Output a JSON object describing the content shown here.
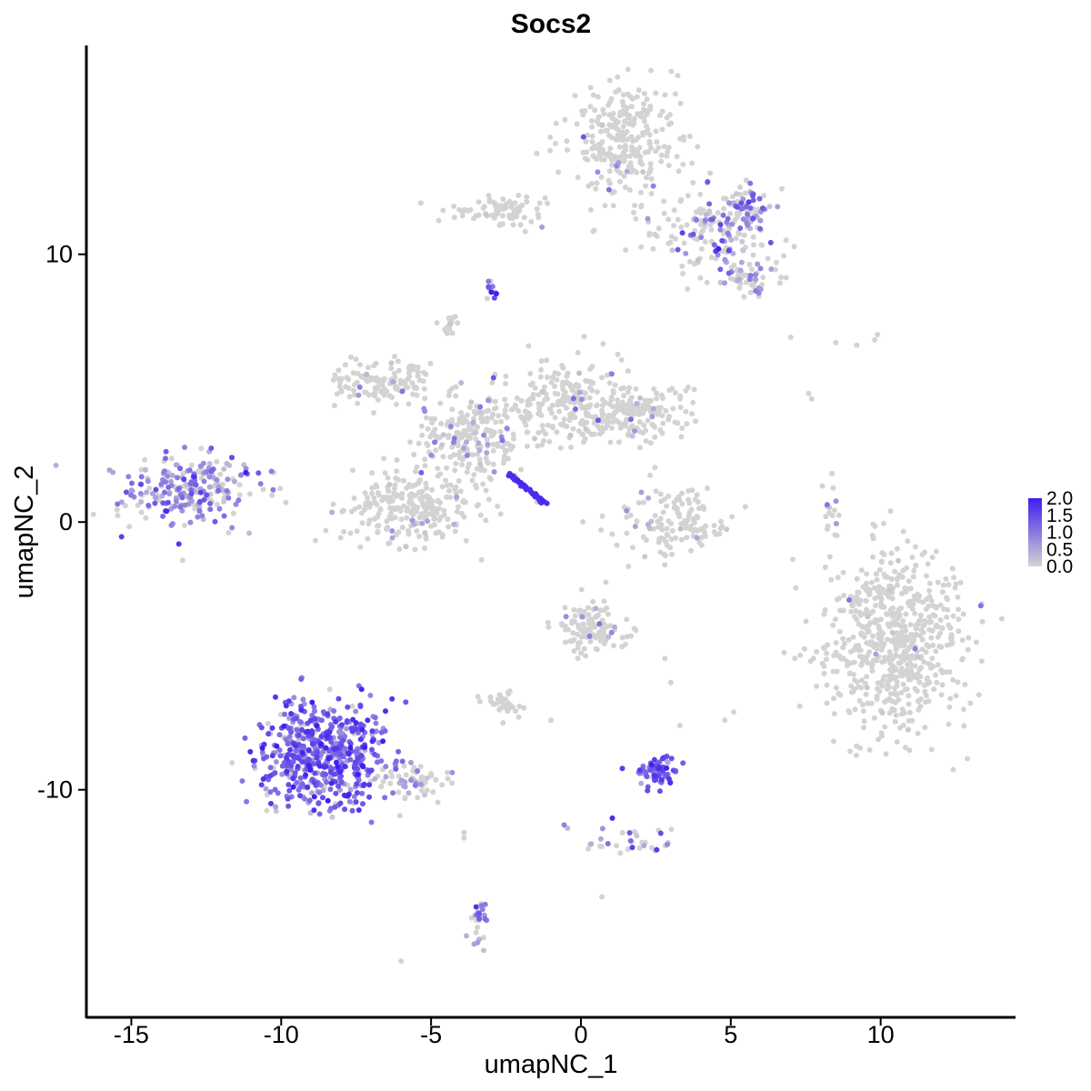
{
  "chart_data": {
    "type": "scatter",
    "title": "Socs2",
    "xlabel": "umapNC_1",
    "ylabel": "umapNC_2",
    "xlim": [
      -16.5,
      14.5
    ],
    "ylim": [
      -18.5,
      17.8
    ],
    "x_ticks": [
      -15,
      -10,
      -5,
      0,
      5,
      10
    ],
    "x_tick_labels": [
      "-15",
      "-10",
      "-5",
      "0",
      "5",
      "10"
    ],
    "y_ticks": [
      -10,
      0,
      10
    ],
    "y_tick_labels": [
      "-10",
      "0",
      "10"
    ],
    "grid": false,
    "legend": {
      "position": "right",
      "title": "",
      "min": 0.0,
      "max": 2.0,
      "ticks": [
        2.0,
        1.5,
        1.0,
        0.5,
        0.0
      ],
      "tick_labels": [
        "2.0",
        "1.5",
        "1.0",
        "0.5",
        "0.0"
      ],
      "low_color": "#d3d3d3",
      "high_color": "#3f1ef0"
    },
    "point_color_low": "#d3d3d3",
    "point_color_high": "#3f1ef0",
    "clusters": [
      {
        "id": "left-small",
        "center": [
          -12.9,
          1.2
        ],
        "spread": [
          1.1,
          0.65
        ],
        "n": 240,
        "mean_expr": 0.85,
        "frac_expressing": 0.7
      },
      {
        "id": "bottom-left-large",
        "center": [
          -8.6,
          -8.7
        ],
        "spread": [
          1.1,
          1.0
        ],
        "n": 560,
        "mean_expr": 1.2,
        "frac_expressing": 0.9
      },
      {
        "id": "bottom-left-tail",
        "center": [
          -5.9,
          -9.7
        ],
        "spread": [
          0.8,
          0.3
        ],
        "n": 60,
        "mean_expr": 0.6,
        "frac_expressing": 0.35
      },
      {
        "id": "center-west-lobe",
        "center": [
          -5.6,
          0.6
        ],
        "spread": [
          1.1,
          0.7
        ],
        "n": 260,
        "mean_expr": 0.4,
        "frac_expressing": 0.08
      },
      {
        "id": "center-top-left-arm",
        "center": [
          -6.6,
          5.2
        ],
        "spread": [
          0.8,
          0.4
        ],
        "n": 120,
        "mean_expr": 0.4,
        "frac_expressing": 0.06
      },
      {
        "id": "center-hub",
        "center": [
          -3.6,
          3.3
        ],
        "spread": [
          0.9,
          0.8
        ],
        "n": 220,
        "mean_expr": 0.6,
        "frac_expressing": 0.15
      },
      {
        "id": "center-east-arm",
        "center": [
          -0.4,
          4.5
        ],
        "spread": [
          1.2,
          0.8
        ],
        "n": 230,
        "mean_expr": 0.4,
        "frac_expressing": 0.06
      },
      {
        "id": "center-far-east",
        "center": [
          1.9,
          4.0
        ],
        "spread": [
          0.9,
          0.5
        ],
        "n": 140,
        "mean_expr": 0.4,
        "frac_expressing": 0.04
      },
      {
        "id": "center-tip",
        "center": [
          -4.4,
          7.3
        ],
        "spread": [
          0.2,
          0.3
        ],
        "n": 15,
        "mean_expr": 0.4,
        "frac_expressing": 0.05
      },
      {
        "id": "top-blob",
        "center": [
          1.5,
          14.2
        ],
        "spread": [
          0.9,
          1.1
        ],
        "n": 280,
        "mean_expr": 0.4,
        "frac_expressing": 0.04
      },
      {
        "id": "top-left-band",
        "center": [
          -2.6,
          11.6
        ],
        "spread": [
          0.8,
          0.3
        ],
        "n": 80,
        "mean_expr": 0.4,
        "frac_expressing": 0.05
      },
      {
        "id": "top-right-arm",
        "center": [
          4.5,
          11.0
        ],
        "spread": [
          0.9,
          0.9
        ],
        "n": 180,
        "mean_expr": 0.8,
        "frac_expressing": 0.35
      },
      {
        "id": "top-right-tip",
        "center": [
          5.7,
          11.6
        ],
        "spread": [
          0.3,
          0.3
        ],
        "n": 35,
        "mean_expr": 0.9,
        "frac_expressing": 0.7
      },
      {
        "id": "top-right-lower",
        "center": [
          5.5,
          9.3
        ],
        "spread": [
          0.6,
          0.4
        ],
        "n": 60,
        "mean_expr": 0.7,
        "frac_expressing": 0.35
      },
      {
        "id": "top-band-small",
        "center": [
          -3.0,
          8.7
        ],
        "spread": [
          0.1,
          0.2
        ],
        "n": 10,
        "mean_expr": 1.2,
        "frac_expressing": 0.8
      },
      {
        "id": "ring-cluster",
        "center": [
          3.0,
          0.0
        ],
        "spread": [
          1.0,
          0.6
        ],
        "n": 130,
        "mean_expr": 0.4,
        "frac_expressing": 0.05
      },
      {
        "id": "right-large",
        "center": [
          10.5,
          -4.5
        ],
        "spread": [
          1.2,
          1.6
        ],
        "n": 640,
        "mean_expr": 0.4,
        "frac_expressing": 0.02
      },
      {
        "id": "right-arc",
        "center": [
          8.3,
          0.3
        ],
        "spread": [
          0.15,
          0.6
        ],
        "n": 18,
        "mean_expr": 0.5,
        "frac_expressing": 0.1
      },
      {
        "id": "mid-bottom-upper",
        "center": [
          0.4,
          -3.9
        ],
        "spread": [
          0.6,
          0.5
        ],
        "n": 110,
        "mean_expr": 0.45,
        "frac_expressing": 0.1
      },
      {
        "id": "mid-bottom-small",
        "center": [
          -2.6,
          -6.8
        ],
        "spread": [
          0.3,
          0.2
        ],
        "n": 35,
        "mean_expr": 0.4,
        "frac_expressing": 0.05
      },
      {
        "id": "dense-purple-small",
        "center": [
          2.5,
          -9.3
        ],
        "spread": [
          0.35,
          0.3
        ],
        "n": 70,
        "mean_expr": 1.2,
        "frac_expressing": 0.95
      },
      {
        "id": "lower-tail",
        "center": [
          1.5,
          -11.9
        ],
        "spread": [
          0.8,
          0.3
        ],
        "n": 35,
        "mean_expr": 0.9,
        "frac_expressing": 0.6
      },
      {
        "id": "bottom-small",
        "center": [
          -3.4,
          -15.0
        ],
        "spread": [
          0.15,
          0.5
        ],
        "n": 28,
        "mean_expr": 0.9,
        "frac_expressing": 0.7
      }
    ],
    "highlighted_line": {
      "from": [
        -2.4,
        1.8
      ],
      "to": [
        -1.2,
        0.7
      ],
      "n": 45,
      "expr": 1.9
    },
    "sparse_points": [
      [
        7.0,
        6.9
      ],
      [
        8.5,
        6.7
      ],
      [
        9.2,
        6.6
      ],
      [
        9.8,
        6.8
      ],
      [
        9.9,
        7.0
      ],
      [
        7.6,
        4.8
      ],
      [
        7.7,
        4.6
      ],
      [
        -6.0,
        -16.4
      ],
      [
        0.7,
        -14.0
      ],
      [
        -3.9,
        -11.8
      ],
      [
        -3.9,
        -11.6
      ],
      [
        2.8,
        -5.1
      ],
      [
        4.8,
        -7.4
      ],
      [
        5.1,
        -7.1
      ],
      [
        3.3,
        -7.6
      ],
      [
        -1.0,
        -7.4
      ],
      [
        -2.6,
        -7.5
      ],
      [
        3.0,
        -6.0
      ]
    ]
  }
}
